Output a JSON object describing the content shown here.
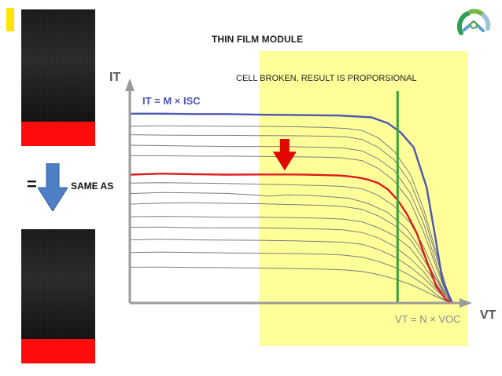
{
  "title": "THIN FILM MODULE",
  "labels": {
    "equals": "=",
    "same_as": "SAME AS"
  },
  "annotations": {
    "cell_broken": "CELL BROKEN, RESULT IS PROPORSIONAL",
    "it_equation": "IT = M × ISC",
    "vt_equation": "VT = N × VOC"
  },
  "axis_labels": {
    "y": "IT",
    "x": "VT"
  },
  "colors": {
    "highlight": "#ffff9a",
    "reference_curve": "#4b57b0",
    "broken_curve": "#dd1b1b",
    "voc_line": "#39a33a",
    "arrow": "#e10600",
    "panel_strip": "#ff0b0b",
    "down_arrow": "#4f80c5"
  },
  "icons": {
    "logo": "radial-logo-icon",
    "down_arrow": "down-arrow-icon",
    "red_arrow": "red-down-arrow-icon"
  },
  "chart_data": {
    "type": "line",
    "title": "THIN FILM MODULE",
    "x_domain": [
      0,
      100
    ],
    "y_domain": [
      0,
      100
    ],
    "series": [
      {
        "values": [
          [
            0,
            90
          ],
          [
            10,
            90
          ],
          [
            20,
            89.8
          ],
          [
            30,
            89.8
          ],
          [
            40,
            89.5
          ],
          [
            50,
            89.4
          ],
          [
            60,
            89.2
          ],
          [
            65,
            89.1
          ],
          [
            70,
            88.7
          ],
          [
            75,
            88.2
          ],
          [
            80,
            85.5
          ],
          [
            84,
            81
          ],
          [
            88,
            74
          ],
          [
            92,
            55
          ],
          [
            94.5,
            33
          ],
          [
            97,
            10
          ],
          [
            100,
            0
          ]
        ]
      },
      {
        "values": [
          [
            0,
            61
          ],
          [
            10,
            61.5
          ],
          [
            20,
            61.2
          ],
          [
            30,
            61.0
          ],
          [
            40,
            61.1
          ],
          [
            50,
            61.1
          ],
          [
            55,
            61
          ],
          [
            60,
            60.8
          ],
          [
            65,
            60.6
          ],
          [
            68,
            60.2
          ],
          [
            71,
            59.6
          ],
          [
            74,
            58.6
          ],
          [
            77,
            57.0
          ],
          [
            80,
            54.0
          ],
          [
            83,
            49.0
          ],
          [
            86,
            42.0
          ],
          [
            89,
            33.0
          ],
          [
            92,
            20.0
          ],
          [
            95,
            8.0
          ],
          [
            98,
            1.5
          ],
          [
            100,
            0
          ]
        ]
      }
    ],
    "background_curves": [
      [
        [
          0,
          84
        ],
        [
          10,
          84.2
        ],
        [
          20,
          84.1
        ],
        [
          30,
          84.0
        ],
        [
          40,
          84.0
        ],
        [
          50,
          83.8
        ],
        [
          60,
          83.5
        ],
        [
          67,
          83.0
        ],
        [
          72,
          82.0
        ],
        [
          77,
          78.5
        ],
        [
          82,
          72
        ],
        [
          87,
          61
        ],
        [
          91,
          45
        ],
        [
          95,
          24
        ],
        [
          98,
          8
        ],
        [
          100,
          0
        ]
      ],
      [
        [
          0,
          80
        ],
        [
          10,
          79.8
        ],
        [
          20,
          79.7
        ],
        [
          30,
          79.7
        ],
        [
          40,
          79.6
        ],
        [
          50,
          79.5
        ],
        [
          60,
          79.3
        ],
        [
          67,
          79
        ],
        [
          72,
          77.7
        ],
        [
          77,
          74
        ],
        [
          82,
          68
        ],
        [
          87,
          57
        ],
        [
          91,
          42
        ],
        [
          95,
          22
        ],
        [
          98,
          7
        ],
        [
          100,
          0
        ]
      ],
      [
        [
          0,
          75
        ],
        [
          10,
          74.8
        ],
        [
          20,
          74.6
        ],
        [
          30,
          74.4
        ],
        [
          40,
          74.4
        ],
        [
          50,
          74.3
        ],
        [
          60,
          74.0
        ],
        [
          66,
          73.7
        ],
        [
          72,
          72.3
        ],
        [
          77,
          68.5
        ],
        [
          82,
          63
        ],
        [
          87,
          52
        ],
        [
          91,
          38
        ],
        [
          95,
          19
        ],
        [
          98,
          6
        ],
        [
          100,
          0
        ]
      ],
      [
        [
          0,
          70
        ],
        [
          10,
          70.0
        ],
        [
          20,
          69.8
        ],
        [
          30,
          69.8
        ],
        [
          40,
          69.7
        ],
        [
          50,
          69.5
        ],
        [
          60,
          69.3
        ],
        [
          66,
          69.0
        ],
        [
          72,
          67.7
        ],
        [
          77,
          64
        ],
        [
          82,
          58
        ],
        [
          87,
          48
        ],
        [
          91,
          34
        ],
        [
          95,
          17
        ],
        [
          98,
          5
        ],
        [
          100,
          0
        ]
      ],
      [
        [
          0,
          57
        ],
        [
          10,
          57.2
        ],
        [
          20,
          57.0
        ],
        [
          30,
          56.8
        ],
        [
          40,
          56.5
        ],
        [
          50,
          56.2
        ],
        [
          60,
          55.8
        ],
        [
          66,
          55.4
        ],
        [
          72,
          54.3
        ],
        [
          77,
          51.2
        ],
        [
          82,
          46
        ],
        [
          87,
          38
        ],
        [
          91,
          27
        ],
        [
          95,
          13
        ],
        [
          98,
          4
        ],
        [
          100,
          0
        ]
      ],
      [
        [
          0,
          52
        ],
        [
          10,
          52.5
        ],
        [
          20,
          52.3
        ],
        [
          30,
          52.1
        ],
        [
          38,
          51.4
        ],
        [
          43,
          50.8
        ],
        [
          49,
          51.4
        ],
        [
          55,
          51.2
        ],
        [
          61,
          50.6
        ],
        [
          68,
          49.8
        ],
        [
          74,
          47.2
        ],
        [
          80,
          43
        ],
        [
          86,
          35
        ],
        [
          90,
          26
        ],
        [
          94,
          14
        ],
        [
          98,
          4
        ],
        [
          100,
          0
        ]
      ],
      [
        [
          0,
          47
        ],
        [
          10,
          47.5
        ],
        [
          20,
          47.6
        ],
        [
          30,
          47.4
        ],
        [
          40,
          47.2
        ],
        [
          50,
          46.8
        ],
        [
          60,
          46.4
        ],
        [
          66,
          45.9
        ],
        [
          72,
          44.5
        ],
        [
          77,
          41.4
        ],
        [
          82,
          37
        ],
        [
          87,
          30
        ],
        [
          91,
          21
        ],
        [
          95,
          11
        ],
        [
          98,
          3
        ],
        [
          100,
          0
        ]
      ],
      [
        [
          0,
          41
        ],
        [
          10,
          41.2
        ],
        [
          20,
          41.0
        ],
        [
          30,
          40.8
        ],
        [
          40,
          40.8
        ],
        [
          50,
          40.6
        ],
        [
          60,
          40.3
        ],
        [
          66,
          39.9
        ],
        [
          72,
          38.6
        ],
        [
          77,
          35.8
        ],
        [
          82,
          32
        ],
        [
          87,
          26
        ],
        [
          91,
          18
        ],
        [
          95,
          9
        ],
        [
          98,
          3
        ],
        [
          100,
          0
        ]
      ],
      [
        [
          0,
          36
        ],
        [
          10,
          36.1
        ],
        [
          20,
          35.8
        ],
        [
          30,
          35.7
        ],
        [
          40,
          35.7
        ],
        [
          50,
          35.5
        ],
        [
          60,
          35.1
        ],
        [
          66,
          34.8
        ],
        [
          72,
          33.5
        ],
        [
          77,
          31.0
        ],
        [
          82,
          27
        ],
        [
          87,
          21
        ],
        [
          91,
          15
        ],
        [
          95,
          7
        ],
        [
          98,
          2
        ],
        [
          100,
          0
        ]
      ],
      [
        [
          0,
          30
        ],
        [
          10,
          30.3
        ],
        [
          20,
          30.0
        ],
        [
          30,
          29.9
        ],
        [
          40,
          29.8
        ],
        [
          50,
          29.6
        ],
        [
          60,
          29.2
        ],
        [
          66,
          28.9
        ],
        [
          72,
          27.9
        ],
        [
          77,
          25.5
        ],
        [
          82,
          22
        ],
        [
          87,
          17
        ],
        [
          91,
          12
        ],
        [
          95,
          6
        ],
        [
          98,
          2
        ],
        [
          100,
          0
        ]
      ],
      [
        [
          0,
          24
        ],
        [
          10,
          24.2
        ],
        [
          20,
          24.0
        ],
        [
          30,
          23.8
        ],
        [
          40,
          23.7
        ],
        [
          50,
          23.5
        ],
        [
          60,
          23.2
        ],
        [
          66,
          22.8
        ],
        [
          72,
          21.8
        ],
        [
          77,
          19.8
        ],
        [
          82,
          17
        ],
        [
          87,
          13
        ],
        [
          91,
          9
        ],
        [
          95,
          4
        ],
        [
          98,
          1
        ],
        [
          100,
          0
        ]
      ],
      [
        [
          0,
          17
        ],
        [
          10,
          17.1
        ],
        [
          20,
          16.9
        ],
        [
          30,
          16.8
        ],
        [
          40,
          16.6
        ],
        [
          50,
          16.4
        ],
        [
          60,
          16.1
        ],
        [
          66,
          15.8
        ],
        [
          72,
          15.0
        ],
        [
          77,
          13.6
        ],
        [
          82,
          11.5
        ],
        [
          87,
          8.8
        ],
        [
          91,
          6
        ],
        [
          95,
          3
        ],
        [
          98,
          1
        ],
        [
          100,
          0
        ]
      ]
    ],
    "highlight_x_range": [
      40,
      100
    ],
    "voc_line_x": 83,
    "arrow": {
      "x": 48,
      "y_top": 78,
      "y_bottom": 63
    },
    "grid": false,
    "legend": "none"
  }
}
